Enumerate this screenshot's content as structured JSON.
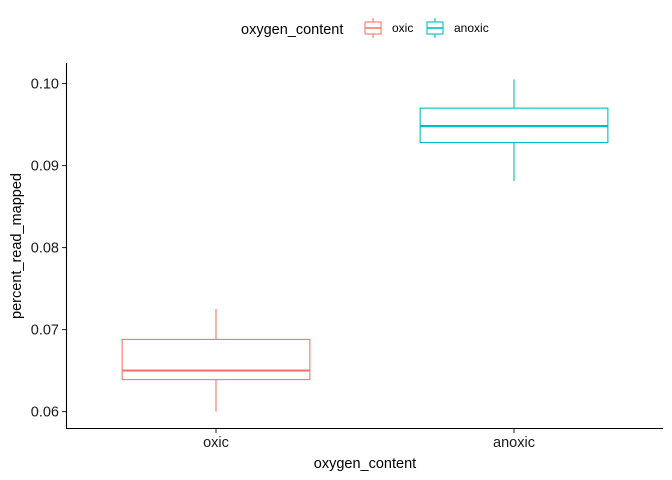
{
  "chart_data": {
    "type": "box",
    "title": "",
    "xlabel": "oxygen_content",
    "ylabel": "percent_read_mapped",
    "categories": [
      "oxic",
      "anoxic"
    ],
    "ylim": [
      0.058,
      0.1025
    ],
    "yticks": [
      0.06,
      0.07,
      0.08,
      0.09,
      0.1
    ],
    "ytick_labels": [
      "0.06",
      "0.07",
      "0.08",
      "0.09",
      "0.10"
    ],
    "grid": false,
    "legend": {
      "title": "oxygen_content",
      "placement": "top",
      "entries": [
        "oxic",
        "anoxic"
      ]
    },
    "series": [
      {
        "category": "oxic",
        "color": "#F8766D",
        "min": 0.06,
        "q1": 0.0639,
        "median": 0.065,
        "q3": 0.0688,
        "max": 0.0725
      },
      {
        "category": "anoxic",
        "color": "#00BFC4",
        "min": 0.0881,
        "q1": 0.0928,
        "median": 0.0948,
        "q3": 0.097,
        "max": 0.1005
      }
    ]
  }
}
